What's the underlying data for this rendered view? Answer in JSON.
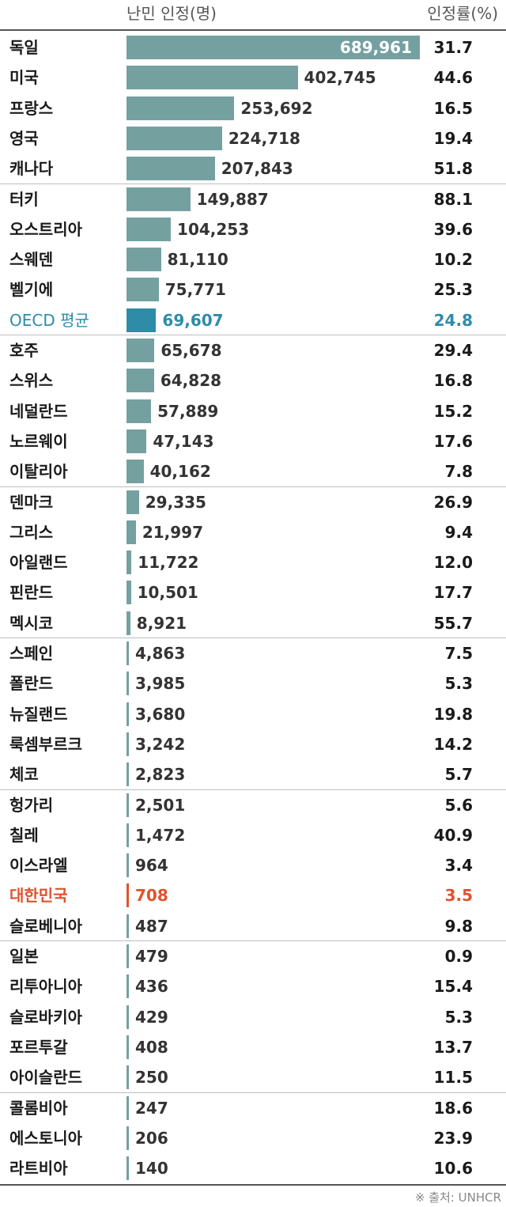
{
  "header": {
    "count_label": "난민 인정(명)",
    "rate_label": "인정률(%)"
  },
  "source": "※ 출처: UNHCR",
  "colors": {
    "bar": "#75a0a0",
    "oecd": "#2e8ca8",
    "korea": "#e0522d",
    "text": "#1a1a1a"
  },
  "chart_data": {
    "type": "bar",
    "orientation": "horizontal",
    "categories": [
      "독일",
      "미국",
      "프랑스",
      "영국",
      "캐나다",
      "터키",
      "오스트리아",
      "스웨덴",
      "벨기에",
      "OECD 평균",
      "호주",
      "스위스",
      "네덜란드",
      "노르웨이",
      "이탈리아",
      "덴마크",
      "그리스",
      "아일랜드",
      "핀란드",
      "멕시코",
      "스페인",
      "폴란드",
      "뉴질랜드",
      "룩셈부르크",
      "체코",
      "헝가리",
      "칠레",
      "이스라엘",
      "대한민국",
      "슬로베니아",
      "일본",
      "리투아니아",
      "슬로바키아",
      "포르투갈",
      "아이슬란드",
      "콜롬비아",
      "에스토니아",
      "라트비아"
    ],
    "series": [
      {
        "name": "난민 인정(명)",
        "values": [
          689961,
          402745,
          253692,
          224718,
          207843,
          149887,
          104253,
          81110,
          75771,
          69607,
          65678,
          64828,
          57889,
          47143,
          40162,
          29335,
          21997,
          11722,
          10501,
          8921,
          4863,
          3985,
          3680,
          3242,
          2823,
          2501,
          1472,
          964,
          708,
          487,
          479,
          436,
          429,
          408,
          250,
          247,
          206,
          140
        ]
      },
      {
        "name": "인정률(%)",
        "values": [
          "31.7",
          "44.6",
          "16.5",
          "19.4",
          "51.8",
          "88.1",
          "39.6",
          "10.2",
          "25.3",
          "24.8",
          "29.4",
          "16.8",
          "15.2",
          "17.6",
          "7.8",
          "26.9",
          "9.4",
          "12.0",
          "17.7",
          "55.7",
          "7.5",
          "5.3",
          "19.8",
          "14.2",
          "5.7",
          "5.6",
          "40.9",
          "3.4",
          "3.5",
          "9.8",
          "0.9",
          "15.4",
          "5.3",
          "13.7",
          "11.5",
          "18.6",
          "23.9",
          "10.6"
        ]
      }
    ],
    "highlight": {
      "OECD 평균": "oecd",
      "대한민국": "korea"
    },
    "group_size": 5,
    "xlim": [
      0,
      689961
    ]
  }
}
